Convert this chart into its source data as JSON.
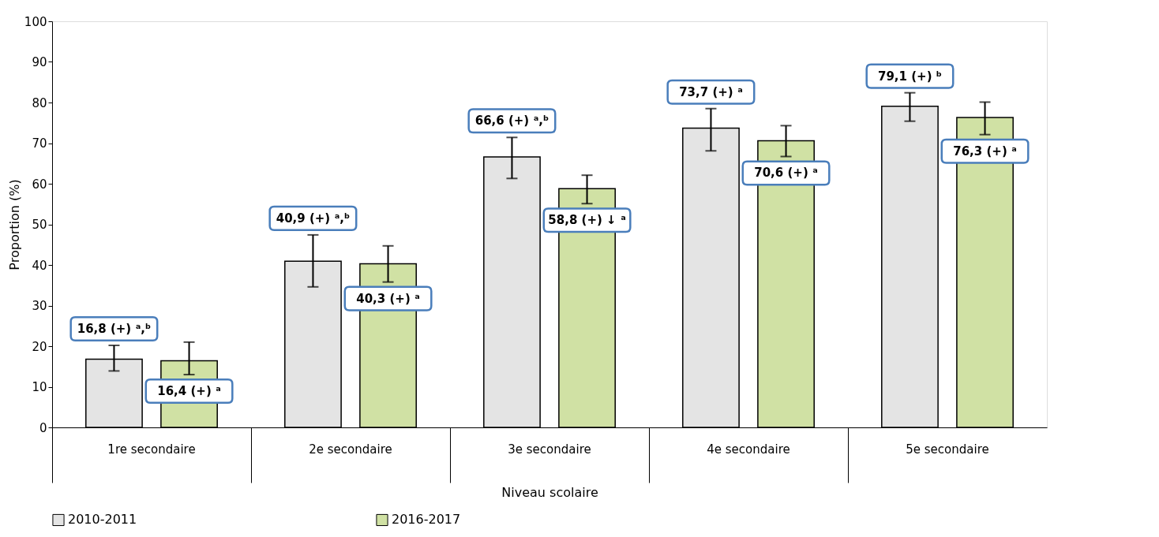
{
  "chart_data": {
    "type": "bar",
    "xlabel": "Niveau scolaire",
    "ylabel": "Proportion (%)",
    "categories": [
      "1re secondaire",
      "2e secondaire",
      "3e secondaire",
      "4e secondaire",
      "5e secondaire"
    ],
    "series": [
      {
        "name": "2010-2011",
        "color": "#e4e4e4",
        "values": [
          16.8,
          40.9,
          66.6,
          73.7,
          79.1
        ],
        "errors": [
          [
            13.9,
            20.2
          ],
          [
            34.6,
            47.4
          ],
          [
            61.3,
            71.4
          ],
          [
            68.1,
            78.5
          ],
          [
            75.4,
            82.4
          ]
        ],
        "value_labels": [
          "16,8 (+) ᵃ,ᵇ",
          "40,9 (+) ᵃ,ᵇ",
          "66,6 (+) ᵃ,ᵇ",
          "73,7 (+) ᵃ",
          "79,1 (+) ᵇ"
        ]
      },
      {
        "name": "2016-2017",
        "color": "#d0e1a4",
        "values": [
          16.4,
          40.3,
          58.8,
          70.6,
          76.3
        ],
        "errors": [
          [
            13.0,
            21.0
          ],
          [
            35.8,
            44.7
          ],
          [
            55.1,
            62.1
          ],
          [
            66.7,
            74.3
          ],
          [
            72.1,
            80.1
          ]
        ],
        "value_labels": [
          "16,4 (+) ᵃ",
          "40,3 (+) ᵃ",
          "58,8 (+) ↓ ᵃ",
          "70,6 (+) ᵃ",
          "76,3 (+) ᵃ"
        ]
      }
    ],
    "ylim": [
      0,
      100
    ],
    "yticks": [
      0,
      10,
      20,
      30,
      40,
      50,
      60,
      70,
      80,
      90,
      100
    ],
    "grid": false,
    "legend": "bottom"
  }
}
